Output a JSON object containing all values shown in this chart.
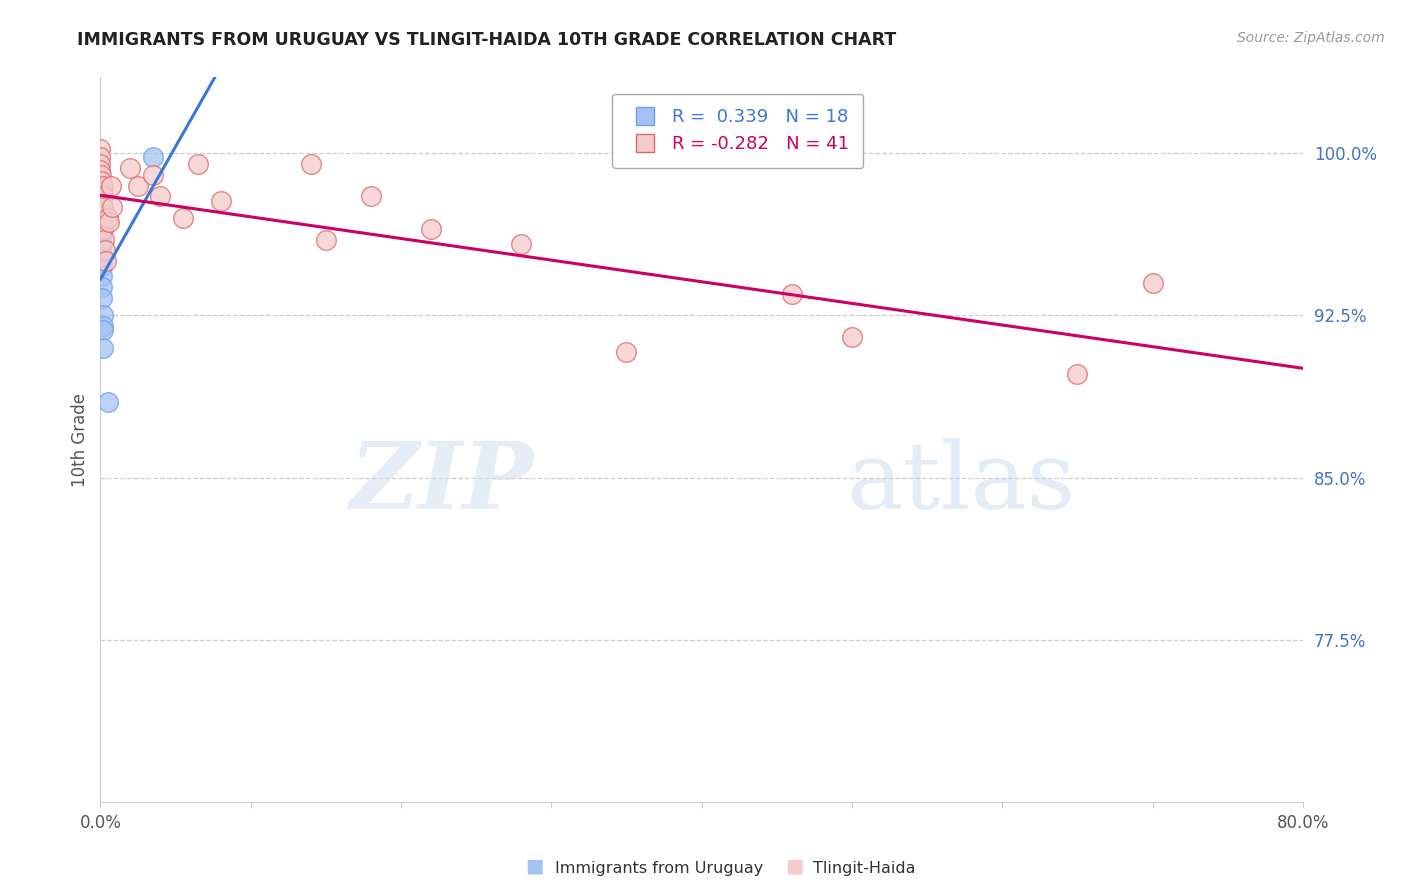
{
  "title": "IMMIGRANTS FROM URUGUAY VS TLINGIT-HAIDA 10TH GRADE CORRELATION CHART",
  "source": "Source: ZipAtlas.com",
  "ylabel": "10th Grade",
  "right_yticks": [
    100.0,
    92.5,
    85.0,
    77.5
  ],
  "right_ytick_labels": [
    "100.0%",
    "92.5%",
    "85.0%",
    "77.5%"
  ],
  "xlim": [
    0.0,
    80.0
  ],
  "ylim": [
    70.0,
    103.5
  ],
  "legend_blue_r": "R =  0.339",
  "legend_blue_n": "N = 18",
  "legend_pink_r": "R = -0.282",
  "legend_pink_n": "N = 41",
  "blue_color": "#a4c2f4",
  "pink_color": "#f4cccc",
  "blue_edge_color": "#6d9eeb",
  "pink_edge_color": "#e06666",
  "blue_line_color": "#3c78d8",
  "pink_line_color": "#cc0066",
  "blue_x": [
    0.0,
    0.0,
    0.0,
    0.0,
    0.05,
    0.05,
    0.05,
    0.08,
    0.08,
    0.08,
    0.08,
    0.08,
    0.15,
    0.15,
    0.2,
    0.2,
    0.5,
    3.5
  ],
  "blue_y": [
    97.2,
    96.8,
    96.4,
    96.0,
    96.5,
    96.0,
    95.5,
    95.2,
    94.8,
    94.3,
    93.8,
    93.3,
    92.5,
    92.0,
    91.8,
    91.0,
    88.5,
    99.8
  ],
  "pink_x": [
    0.0,
    0.0,
    0.0,
    0.0,
    0.05,
    0.05,
    0.05,
    0.08,
    0.08,
    0.08,
    0.1,
    0.1,
    0.1,
    0.15,
    0.15,
    0.2,
    0.2,
    0.25,
    0.3,
    0.35,
    0.5,
    0.6,
    0.7,
    0.8,
    2.0,
    2.5,
    3.5,
    4.0,
    5.5,
    6.5,
    8.0,
    14.0,
    15.0,
    18.0,
    22.0,
    28.0,
    35.0,
    46.0,
    50.0,
    65.0,
    70.0
  ],
  "pink_y": [
    100.2,
    99.8,
    99.5,
    99.2,
    99.0,
    98.7,
    98.4,
    98.2,
    97.9,
    97.5,
    97.2,
    96.8,
    96.5,
    98.5,
    98.0,
    97.5,
    96.5,
    96.0,
    95.5,
    95.0,
    97.0,
    96.8,
    98.5,
    97.5,
    99.3,
    98.5,
    99.0,
    98.0,
    97.0,
    99.5,
    97.8,
    99.5,
    96.0,
    98.0,
    96.5,
    95.8,
    90.8,
    93.5,
    91.5,
    89.8,
    94.0
  ],
  "blue_trendline": [
    0.0,
    80.0
  ],
  "watermark_zip": "ZIP",
  "watermark_atlas": "atlas",
  "grid_color": "#cccccc",
  "background_color": "#ffffff",
  "xtick_minor": [
    10.0,
    20.0,
    30.0,
    40.0,
    50.0,
    60.0,
    70.0
  ]
}
